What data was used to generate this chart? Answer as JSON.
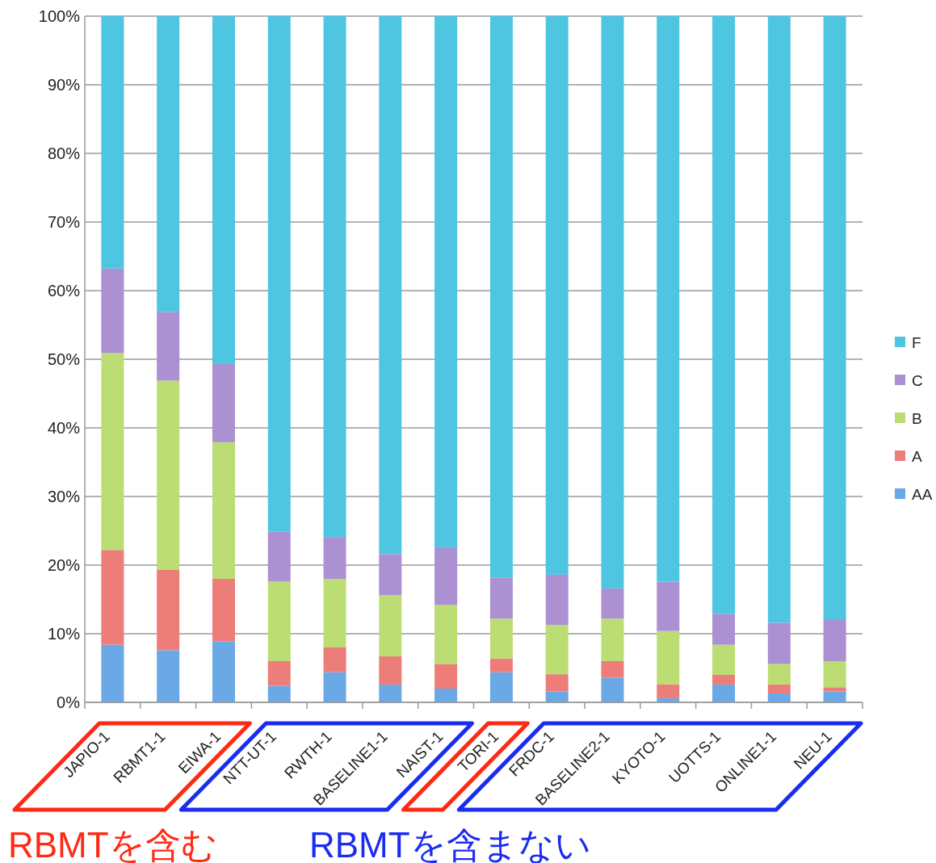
{
  "chart_data": {
    "type": "bar",
    "stacked": true,
    "categories": [
      "JAPIO-1",
      "RBMT1-1",
      "EIWA-1",
      "NTT-UT-1",
      "RWTH-1",
      "BASELINE1-1",
      "NAIST-1",
      "TORI-1",
      "FRDC-1",
      "BASELINE2-1",
      "KYOTO-1",
      "UOTTS-1",
      "ONLINE1-1",
      "NEU-1"
    ],
    "ylim": [
      0,
      100
    ],
    "yticks": [
      {
        "value": 0,
        "label": "0%"
      },
      {
        "value": 10,
        "label": "10%"
      },
      {
        "value": 20,
        "label": "20%"
      },
      {
        "value": 30,
        "label": "30%"
      },
      {
        "value": 40,
        "label": "40%"
      },
      {
        "value": 50,
        "label": "50%"
      },
      {
        "value": 60,
        "label": "60%"
      },
      {
        "value": 70,
        "label": "70%"
      },
      {
        "value": 80,
        "label": "80%"
      },
      {
        "value": 90,
        "label": "90%"
      },
      {
        "value": 100,
        "label": "100%"
      }
    ],
    "grid": "y",
    "legend": "right",
    "series": [
      {
        "name": "AA",
        "color": "#6aa8e6",
        "values": [
          8.4,
          7.6,
          8.9,
          2.4,
          4.4,
          2.6,
          2.0,
          4.4,
          1.6,
          3.6,
          0.6,
          2.6,
          1.3,
          1.6
        ]
      },
      {
        "name": "A",
        "color": "#ec7d78",
        "values": [
          13.8,
          11.7,
          9.1,
          3.6,
          3.6,
          4.1,
          3.6,
          2.0,
          2.5,
          2.4,
          2.0,
          1.4,
          1.3,
          0.6
        ]
      },
      {
        "name": "B",
        "color": "#bcdc74",
        "values": [
          28.7,
          27.6,
          19.9,
          11.6,
          10.0,
          8.9,
          8.6,
          5.8,
          7.2,
          6.2,
          7.8,
          4.4,
          3.0,
          3.8
        ]
      },
      {
        "name": "C",
        "color": "#ab90d2",
        "values": [
          12.3,
          10.0,
          11.4,
          7.3,
          6.1,
          6.0,
          8.4,
          6.0,
          7.3,
          4.4,
          7.2,
          4.5,
          6.0,
          6.0
        ]
      },
      {
        "name": "F",
        "color": "#4ec6e2",
        "values": [
          36.8,
          43.1,
          50.7,
          75.1,
          75.9,
          78.4,
          77.4,
          81.8,
          81.4,
          83.4,
          82.4,
          87.1,
          88.4,
          88.0
        ]
      }
    ],
    "annotations": [
      "RBMTを含む",
      "RBMTを含まない"
    ]
  }
}
